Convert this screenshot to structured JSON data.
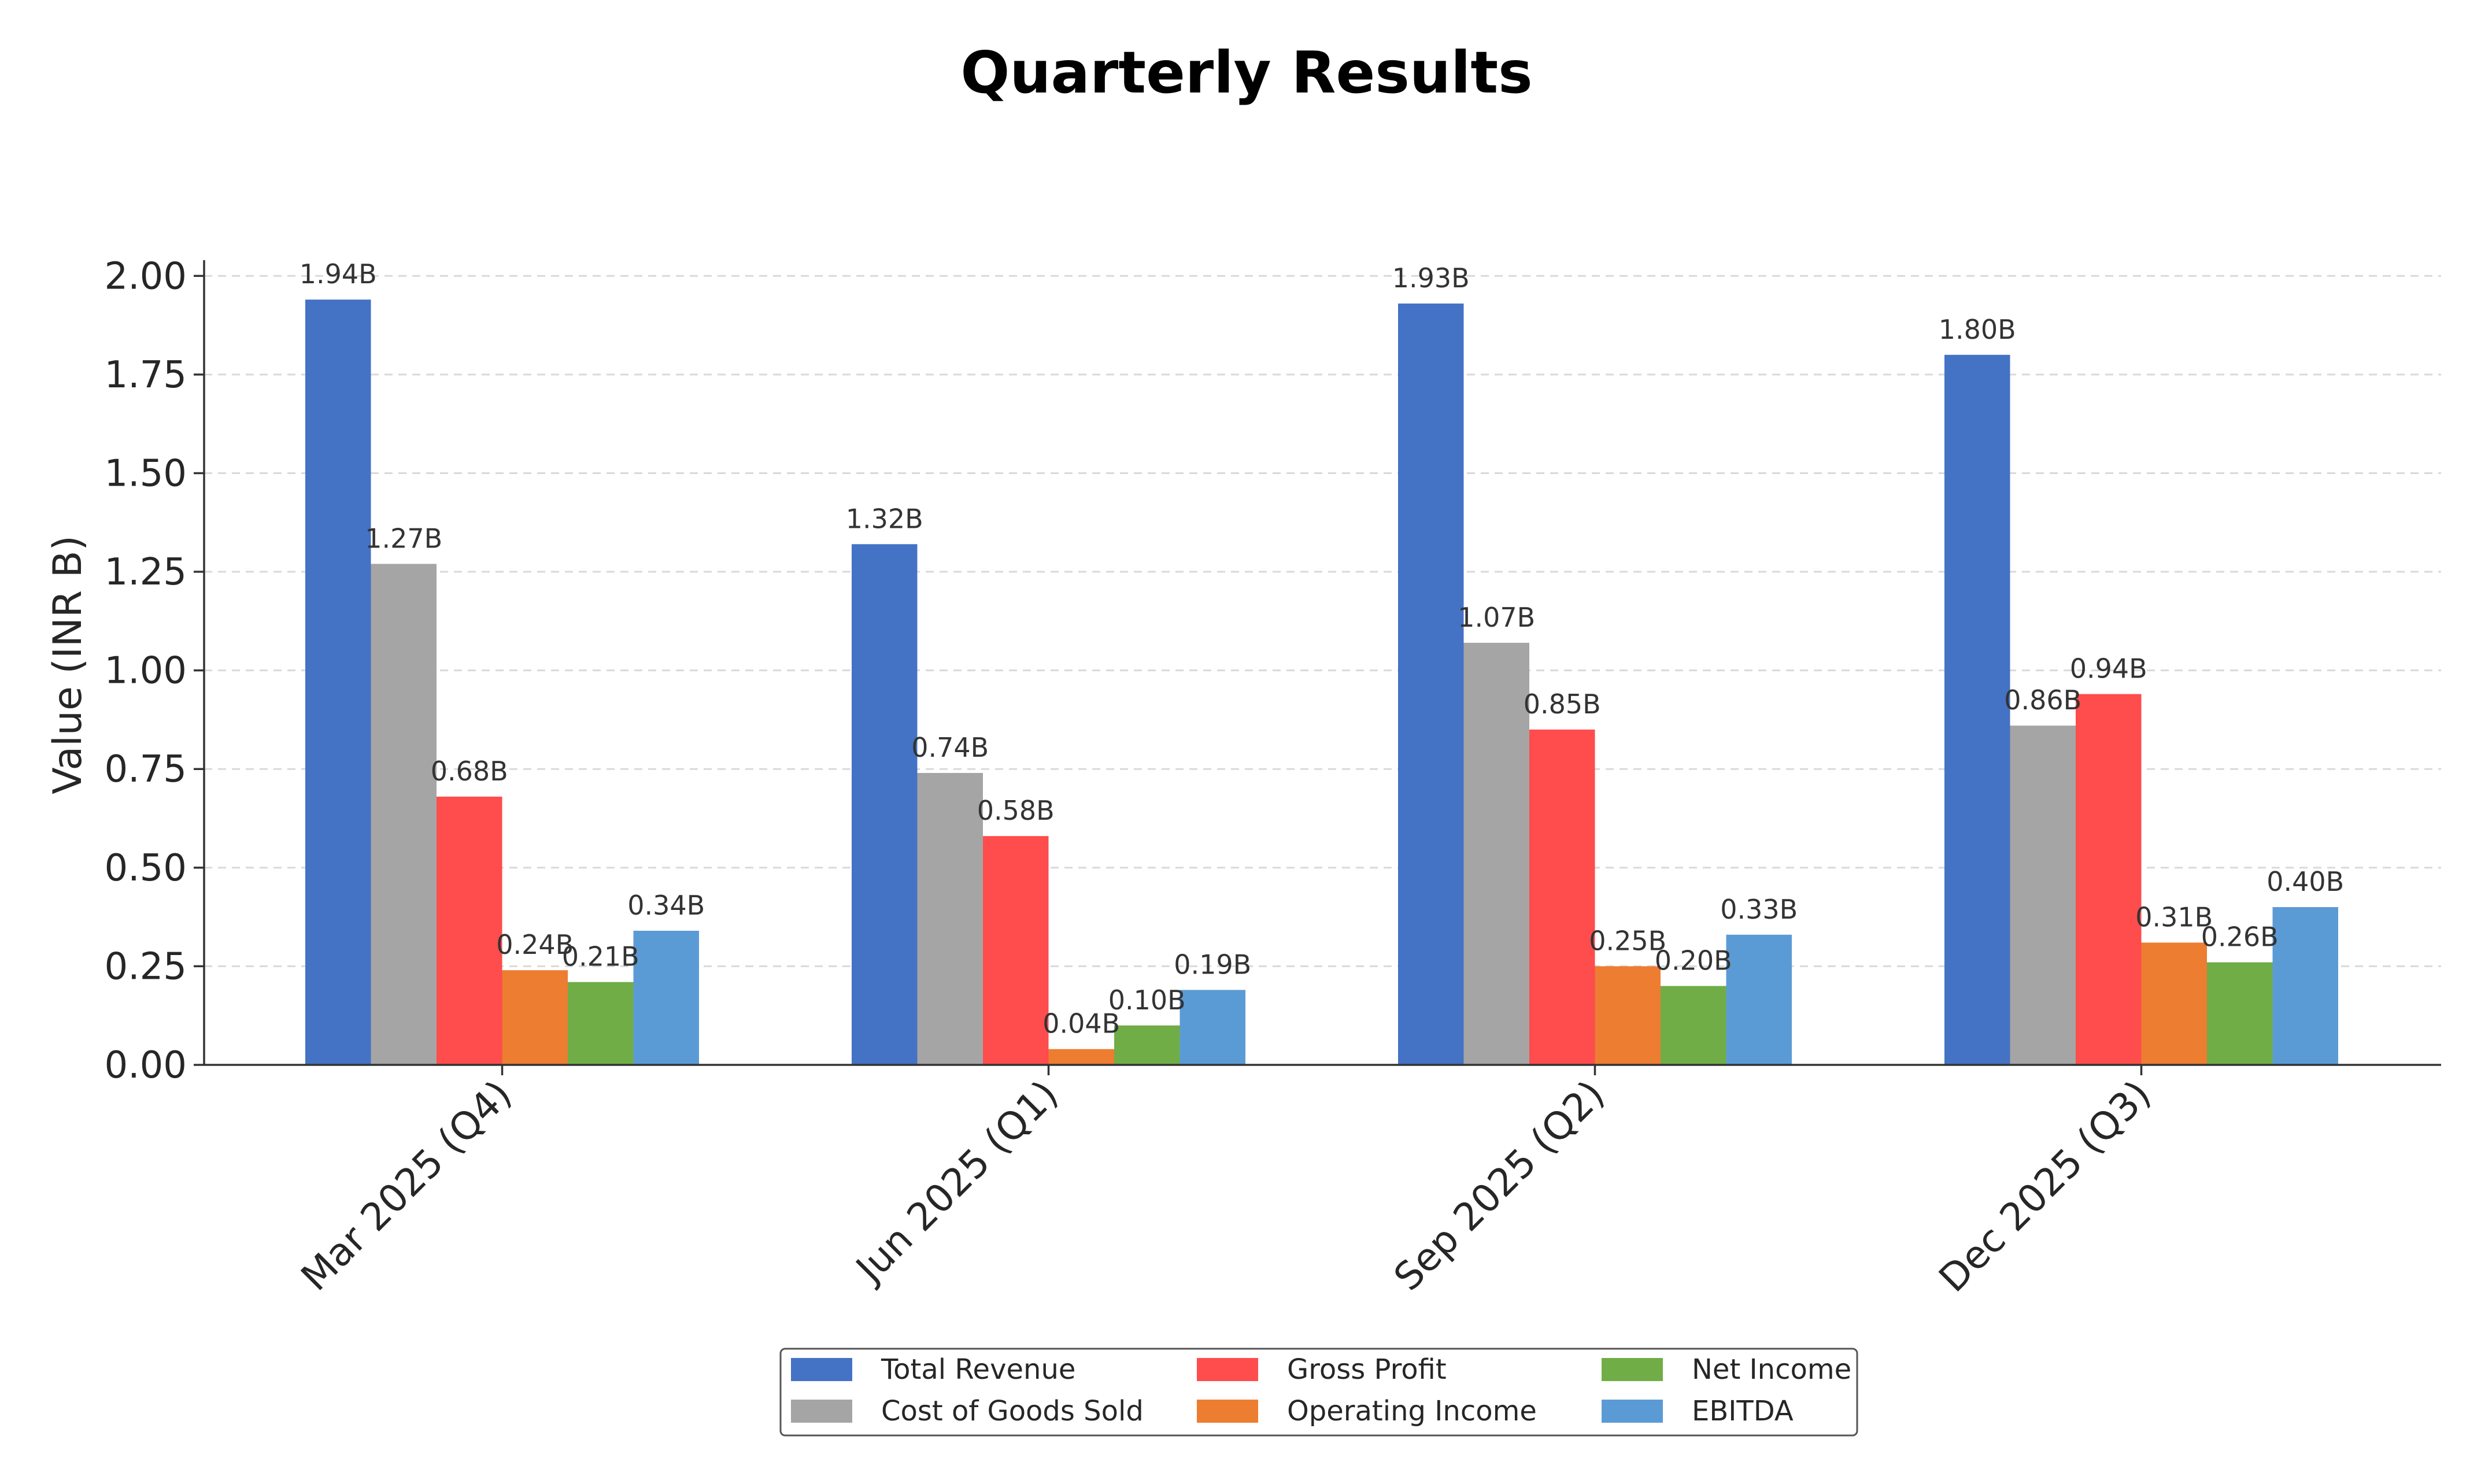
{
  "chart_data": {
    "type": "bar",
    "title": "Quarterly Results",
    "xlabel": "",
    "ylabel": "Value (INR B)",
    "ylim": [
      0,
      2.04
    ],
    "yticks": [
      "0.00",
      "0.25",
      "0.50",
      "0.75",
      "1.00",
      "1.25",
      "1.50",
      "1.75",
      "2.00"
    ],
    "ytick_values": [
      0,
      0.25,
      0.5,
      0.75,
      1.0,
      1.25,
      1.5,
      1.75,
      2.0
    ],
    "grid": "horizontal-dashed",
    "legend_position": "bottom-center",
    "categories": [
      "Mar 2025 (Q4)",
      "Jun 2025 (Q1)",
      "Sep 2025 (Q2)",
      "Dec 2025 (Q3)"
    ],
    "series": [
      {
        "name": "Total Revenue",
        "color": "#4472C4",
        "values": [
          1.94,
          1.32,
          1.93,
          1.8
        ],
        "labels": [
          "1.94B",
          "1.32B",
          "1.93B",
          "1.80B"
        ]
      },
      {
        "name": "Cost of Goods Sold",
        "color": "#A5A5A5",
        "values": [
          1.27,
          0.74,
          1.07,
          0.86
        ],
        "labels": [
          "1.27B",
          "0.74B",
          "1.07B",
          "0.86B"
        ]
      },
      {
        "name": "Gross Profit",
        "color": "#FF4C4C",
        "values": [
          0.68,
          0.58,
          0.85,
          0.94
        ],
        "labels": [
          "0.68B",
          "0.58B",
          "0.85B",
          "0.94B"
        ]
      },
      {
        "name": "Operating Income",
        "color": "#ED7D31",
        "values": [
          0.24,
          0.04,
          0.25,
          0.31
        ],
        "labels": [
          "0.24B",
          "0.04B",
          "0.25B",
          "0.31B"
        ]
      },
      {
        "name": "Net Income",
        "color": "#70AD47",
        "values": [
          0.21,
          0.1,
          0.2,
          0.26
        ],
        "labels": [
          "0.21B",
          "0.10B",
          "0.20B",
          "0.26B"
        ]
      },
      {
        "name": "EBITDA",
        "color": "#5B9BD5",
        "values": [
          0.34,
          0.19,
          0.33,
          0.4
        ],
        "labels": [
          "0.34B",
          "0.19B",
          "0.33B",
          "0.40B"
        ]
      }
    ],
    "legend_order": [
      "Total Revenue",
      "Cost of Goods Sold",
      "Gross Profit",
      "Operating Income",
      "Net Income",
      "EBITDA"
    ]
  }
}
